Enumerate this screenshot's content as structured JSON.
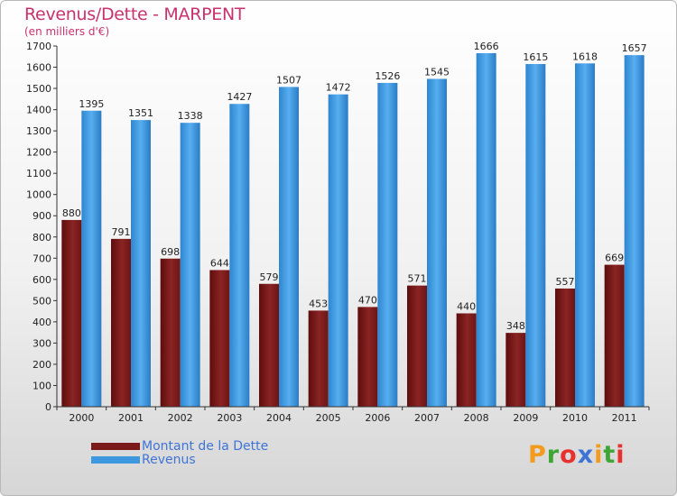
{
  "title": "Revenus/Dette - MARPENT",
  "subtitle": "(en milliers d'€)",
  "colors": {
    "debt": "#7b1a1a",
    "revenue": "#3d98de",
    "title": "#c8326e",
    "legend_text": "#3f74d6"
  },
  "logo": {
    "text": "Proxiti",
    "letter_colors": [
      "#f29b1e",
      "#3fa535",
      "#e8312f",
      "#3f74d6",
      "#f29b1e",
      "#3fa535",
      "#e8312f"
    ]
  },
  "chart_data": {
    "type": "bar",
    "categories": [
      "2000",
      "2001",
      "2002",
      "2003",
      "2004",
      "2005",
      "2006",
      "2007",
      "2008",
      "2009",
      "2010",
      "2011"
    ],
    "series": [
      {
        "name": "Montant de la Dette",
        "values": [
          880,
          791,
          698,
          644,
          579,
          453,
          470,
          571,
          440,
          348,
          557,
          669
        ]
      },
      {
        "name": "Revenus",
        "values": [
          1395,
          1351,
          1338,
          1427,
          1507,
          1472,
          1526,
          1545,
          1666,
          1615,
          1618,
          1657
        ]
      }
    ],
    "ylim": [
      0,
      1700
    ],
    "yticks": [
      0,
      100,
      200,
      300,
      400,
      500,
      600,
      700,
      800,
      900,
      1000,
      1100,
      1200,
      1300,
      1400,
      1500,
      1600,
      1700
    ],
    "grid": false,
    "legend": "bottom-left"
  }
}
